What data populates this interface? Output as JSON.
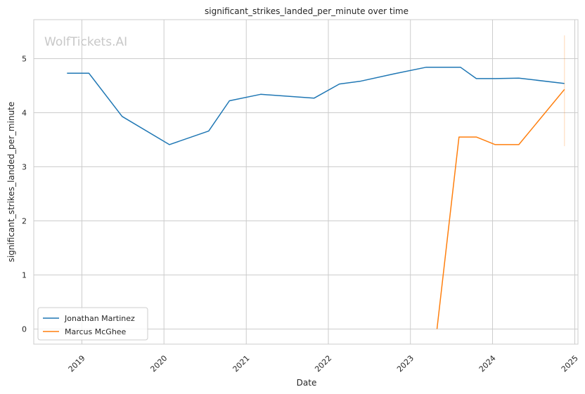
{
  "chart_data": {
    "type": "line",
    "title": "significant_strikes_landed_per_minute over time",
    "xlabel": "Date",
    "ylabel": "significant_strikes_landed_per_minute",
    "watermark": "WolfTickets.AI",
    "x_ticks": [
      "2019",
      "2020",
      "2021",
      "2022",
      "2023",
      "2024",
      "2025"
    ],
    "y_ticks": [
      0,
      1,
      2,
      3,
      4,
      5
    ],
    "xlim": [
      "2018-06-01",
      "2025-01-15"
    ],
    "ylim": [
      -0.28,
      5.72
    ],
    "grid": true,
    "legend_position": "lower-left",
    "colors": {
      "Jonathan Martinez": "#1f77b4",
      "Marcus McGhee": "#ff7f0e"
    },
    "series": [
      {
        "name": "Jonathan Martinez",
        "color": "#1f77b4",
        "points": [
          {
            "x": "2018-10-27",
            "y": 4.73
          },
          {
            "x": "2019-02-01",
            "y": 4.73
          },
          {
            "x": "2019-06-29",
            "y": 3.93
          },
          {
            "x": "2020-01-25",
            "y": 3.41
          },
          {
            "x": "2020-07-18",
            "y": 3.66
          },
          {
            "x": "2020-10-18",
            "y": 4.22
          },
          {
            "x": "2021-03-06",
            "y": 4.34
          },
          {
            "x": "2021-10-30",
            "y": 4.27
          },
          {
            "x": "2022-02-19",
            "y": 4.53
          },
          {
            "x": "2022-05-21",
            "y": 4.58
          },
          {
            "x": "2022-10-22",
            "y": 4.72
          },
          {
            "x": "2023-03-11",
            "y": 4.84
          },
          {
            "x": "2023-08-12",
            "y": 4.84
          },
          {
            "x": "2023-10-21",
            "y": 4.63
          },
          {
            "x": "2024-01-13",
            "y": 4.63
          },
          {
            "x": "2024-04-27",
            "y": 4.64
          },
          {
            "x": "2024-11-16",
            "y": 4.54
          }
        ]
      },
      {
        "name": "Marcus McGhee",
        "color": "#ff7f0e",
        "points": [
          {
            "x": "2023-04-29",
            "y": 0.0
          },
          {
            "x": "2023-08-05",
            "y": 3.55
          },
          {
            "x": "2023-10-21",
            "y": 3.55
          },
          {
            "x": "2024-01-13",
            "y": 3.41
          },
          {
            "x": "2024-04-27",
            "y": 3.41
          },
          {
            "x": "2024-11-16",
            "y": 4.43
          }
        ],
        "error_bar": {
          "x": "2024-11-16",
          "y_low": 3.38,
          "y_high": 5.43
        }
      }
    ]
  }
}
